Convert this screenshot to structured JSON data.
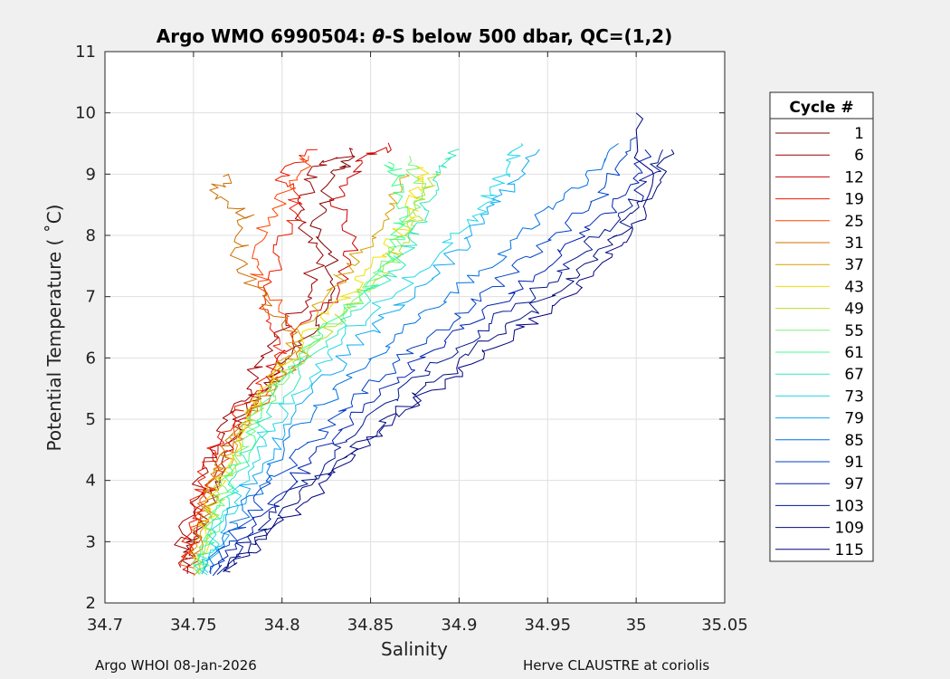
{
  "chart_data": {
    "type": "line",
    "title_prefix": "Argo WMO 6990504: ",
    "title_theta": "θ",
    "title_suffix": "-S below 500 dbar,  QC=(1,2)",
    "xlabel": "Salinity",
    "ylabel": "Potential Temperature ( ˚C)",
    "xlim": [
      34.7,
      35.05
    ],
    "ylim": [
      2,
      11
    ],
    "xticks": [
      34.7,
      34.75,
      34.8,
      34.85,
      34.9,
      34.95,
      35,
      35.05
    ],
    "xtick_labels": [
      "34.7",
      "34.75",
      "34.8",
      "34.85",
      "34.9",
      "34.95",
      "35",
      "35.05"
    ],
    "yticks": [
      2,
      3,
      4,
      5,
      6,
      7,
      8,
      9,
      10,
      11
    ],
    "ytick_labels": [
      "2",
      "3",
      "4",
      "5",
      "6",
      "7",
      "8",
      "9",
      "10",
      "11"
    ],
    "grid": true,
    "colormap": "jet",
    "legend": {
      "title": "Cycle #",
      "position": "right-outside",
      "entries": [
        "1",
        "6",
        "12",
        "19",
        "25",
        "31",
        "37",
        "43",
        "49",
        "55",
        "61",
        "67",
        "73",
        "79",
        "85",
        "91",
        "97",
        "103",
        "109",
        "115"
      ],
      "colors": [
        "#800000",
        "#9b0000",
        "#cc0000",
        "#ee1800",
        "#ff4400",
        "#cc7000",
        "#d4a000",
        "#f0e000",
        "#b8e02a",
        "#80f07a",
        "#40ff90",
        "#30e8c0",
        "#20d8e8",
        "#10a8f0",
        "#0070e0",
        "#0040c8",
        "#0020b0",
        "#001890",
        "#000c78",
        "#000080"
      ]
    },
    "series": [
      {
        "color": "#800000",
        "points": [
          [
            34.745,
            2.5
          ],
          [
            34.75,
            3.0
          ],
          [
            34.76,
            3.8
          ],
          [
            34.77,
            4.5
          ],
          [
            34.78,
            5.2
          ],
          [
            34.8,
            5.8
          ],
          [
            34.82,
            6.5
          ],
          [
            34.83,
            7.3
          ],
          [
            34.82,
            8.2
          ],
          [
            34.83,
            9.0
          ],
          [
            34.84,
            9.3
          ]
        ]
      },
      {
        "color": "#9b0000",
        "points": [
          [
            34.742,
            2.6
          ],
          [
            34.745,
            3.2
          ],
          [
            34.755,
            4.0
          ],
          [
            34.765,
            4.8
          ],
          [
            34.78,
            5.4
          ],
          [
            34.79,
            6.1
          ],
          [
            34.81,
            6.8
          ],
          [
            34.82,
            7.6
          ],
          [
            34.81,
            8.4
          ],
          [
            34.82,
            9.1
          ],
          [
            34.84,
            9.4
          ]
        ]
      },
      {
        "color": "#cc0000",
        "points": [
          [
            34.748,
            2.5
          ],
          [
            34.752,
            3.3
          ],
          [
            34.76,
            4.2
          ],
          [
            34.775,
            4.9
          ],
          [
            34.79,
            5.6
          ],
          [
            34.805,
            6.3
          ],
          [
            34.83,
            7.0
          ],
          [
            34.84,
            7.8
          ],
          [
            34.83,
            8.6
          ],
          [
            34.845,
            9.2
          ],
          [
            34.86,
            9.5
          ]
        ]
      },
      {
        "color": "#ee1800",
        "points": [
          [
            34.744,
            2.7
          ],
          [
            34.75,
            3.5
          ],
          [
            34.758,
            4.3
          ],
          [
            34.77,
            5.0
          ],
          [
            34.785,
            5.5
          ],
          [
            34.8,
            6.2
          ],
          [
            34.79,
            7.0
          ],
          [
            34.8,
            7.8
          ],
          [
            34.81,
            8.5
          ],
          [
            34.8,
            9.0
          ],
          [
            34.82,
            9.4
          ]
        ]
      },
      {
        "color": "#ff4400",
        "points": [
          [
            34.746,
            2.6
          ],
          [
            34.753,
            3.4
          ],
          [
            34.762,
            4.1
          ],
          [
            34.774,
            4.7
          ],
          [
            34.79,
            5.3
          ],
          [
            34.81,
            6.0
          ],
          [
            34.8,
            6.7
          ],
          [
            34.785,
            7.4
          ],
          [
            34.79,
            8.1
          ],
          [
            34.805,
            8.8
          ],
          [
            34.815,
            9.3
          ]
        ]
      },
      {
        "color": "#cc7000",
        "points": [
          [
            34.75,
            2.6
          ],
          [
            34.756,
            3.5
          ],
          [
            34.766,
            4.3
          ],
          [
            34.78,
            5.0
          ],
          [
            34.795,
            5.6
          ],
          [
            34.81,
            6.2
          ],
          [
            34.79,
            6.9
          ],
          [
            34.775,
            7.6
          ],
          [
            34.78,
            8.3
          ],
          [
            34.762,
            8.7
          ],
          [
            34.77,
            9.0
          ]
        ]
      },
      {
        "color": "#d4a000",
        "points": [
          [
            34.749,
            2.5
          ],
          [
            34.755,
            3.3
          ],
          [
            34.765,
            4.1
          ],
          [
            34.777,
            4.8
          ],
          [
            34.792,
            5.5
          ],
          [
            34.8,
            6.0
          ],
          [
            34.815,
            6.6
          ],
          [
            34.83,
            7.2
          ],
          [
            34.845,
            7.8
          ],
          [
            34.86,
            8.4
          ],
          [
            34.87,
            9.0
          ]
        ]
      },
      {
        "color": "#f0e000",
        "points": [
          [
            34.75,
            2.5
          ],
          [
            34.758,
            3.4
          ],
          [
            34.768,
            4.2
          ],
          [
            34.78,
            5.0
          ],
          [
            34.795,
            5.7
          ],
          [
            34.815,
            6.4
          ],
          [
            34.835,
            7.0
          ],
          [
            34.855,
            7.6
          ],
          [
            34.87,
            8.2
          ],
          [
            34.875,
            8.7
          ],
          [
            34.88,
            9.1
          ]
        ]
      },
      {
        "color": "#b8e02a",
        "points": [
          [
            34.751,
            2.5
          ],
          [
            34.76,
            3.4
          ],
          [
            34.77,
            4.2
          ],
          [
            34.782,
            5.0
          ],
          [
            34.8,
            5.7
          ],
          [
            34.82,
            6.3
          ],
          [
            34.84,
            6.9
          ],
          [
            34.86,
            7.5
          ],
          [
            34.875,
            8.1
          ],
          [
            34.88,
            8.6
          ],
          [
            34.885,
            9.0
          ]
        ]
      },
      {
        "color": "#80f07a",
        "points": [
          [
            34.752,
            2.5
          ],
          [
            34.761,
            3.4
          ],
          [
            34.772,
            4.2
          ],
          [
            34.785,
            5.0
          ],
          [
            34.802,
            5.7
          ],
          [
            34.822,
            6.4
          ],
          [
            34.845,
            7.0
          ],
          [
            34.862,
            7.6
          ],
          [
            34.872,
            8.2
          ],
          [
            34.878,
            8.8
          ],
          [
            34.872,
            9.3
          ]
        ]
      },
      {
        "color": "#40ff90",
        "points": [
          [
            34.753,
            2.5
          ],
          [
            34.762,
            3.3
          ],
          [
            34.774,
            4.2
          ],
          [
            34.787,
            5.0
          ],
          [
            34.806,
            5.8
          ],
          [
            34.826,
            6.5
          ],
          [
            34.848,
            7.1
          ],
          [
            34.864,
            7.7
          ],
          [
            34.868,
            8.3
          ],
          [
            34.866,
            8.9
          ],
          [
            34.86,
            9.2
          ]
        ]
      },
      {
        "color": "#30e8c0",
        "points": [
          [
            34.754,
            2.5
          ],
          [
            34.764,
            3.3
          ],
          [
            34.776,
            4.2
          ],
          [
            34.79,
            5.0
          ],
          [
            34.81,
            5.8
          ],
          [
            34.832,
            6.5
          ],
          [
            34.855,
            7.2
          ],
          [
            34.872,
            7.8
          ],
          [
            34.88,
            8.4
          ],
          [
            34.89,
            9.0
          ],
          [
            34.9,
            9.4
          ]
        ]
      },
      {
        "color": "#20d8e8",
        "points": [
          [
            34.755,
            2.5
          ],
          [
            34.766,
            3.3
          ],
          [
            34.778,
            4.1
          ],
          [
            34.794,
            4.9
          ],
          [
            34.815,
            5.7
          ],
          [
            34.84,
            6.5
          ],
          [
            34.87,
            7.2
          ],
          [
            34.895,
            7.9
          ],
          [
            34.915,
            8.5
          ],
          [
            34.925,
            9.0
          ],
          [
            34.935,
            9.5
          ]
        ]
      },
      {
        "color": "#10a8f0",
        "points": [
          [
            34.756,
            2.5
          ],
          [
            34.768,
            3.2
          ],
          [
            34.782,
            4.0
          ],
          [
            34.8,
            4.8
          ],
          [
            34.822,
            5.6
          ],
          [
            34.848,
            6.4
          ],
          [
            34.876,
            7.1
          ],
          [
            34.9,
            7.8
          ],
          [
            34.918,
            8.4
          ],
          [
            34.93,
            8.9
          ],
          [
            34.945,
            9.4
          ]
        ]
      },
      {
        "color": "#0070e0",
        "points": [
          [
            34.758,
            2.5
          ],
          [
            34.772,
            3.2
          ],
          [
            34.788,
            4.0
          ],
          [
            34.808,
            4.8
          ],
          [
            34.832,
            5.5
          ],
          [
            34.86,
            6.2
          ],
          [
            34.89,
            6.9
          ],
          [
            34.92,
            7.6
          ],
          [
            34.945,
            8.3
          ],
          [
            34.97,
            8.9
          ],
          [
            34.99,
            9.5
          ]
        ]
      },
      {
        "color": "#0040c8",
        "points": [
          [
            34.76,
            2.5
          ],
          [
            34.776,
            3.2
          ],
          [
            34.794,
            3.9
          ],
          [
            34.815,
            4.6
          ],
          [
            34.84,
            5.3
          ],
          [
            34.868,
            6.0
          ],
          [
            34.9,
            6.7
          ],
          [
            34.93,
            7.4
          ],
          [
            34.96,
            8.1
          ],
          [
            34.985,
            8.8
          ],
          [
            35.0,
            9.6
          ]
        ]
      },
      {
        "color": "#0020b0",
        "points": [
          [
            34.762,
            2.5
          ],
          [
            34.78,
            3.1
          ],
          [
            34.8,
            3.8
          ],
          [
            34.822,
            4.5
          ],
          [
            34.848,
            5.2
          ],
          [
            34.876,
            5.9
          ],
          [
            34.908,
            6.6
          ],
          [
            34.94,
            7.3
          ],
          [
            34.97,
            8.0
          ],
          [
            34.995,
            8.7
          ],
          [
            35.005,
            9.4
          ]
        ]
      },
      {
        "color": "#001890",
        "points": [
          [
            34.764,
            2.5
          ],
          [
            34.784,
            3.1
          ],
          [
            34.806,
            3.8
          ],
          [
            34.83,
            4.5
          ],
          [
            34.858,
            5.2
          ],
          [
            34.888,
            5.9
          ],
          [
            34.92,
            6.6
          ],
          [
            34.952,
            7.3
          ],
          [
            34.98,
            8.0
          ],
          [
            35.0,
            8.6
          ],
          [
            35.015,
            9.4
          ]
        ]
      },
      {
        "color": "#000c78",
        "points": [
          [
            34.766,
            2.5
          ],
          [
            34.788,
            3.1
          ],
          [
            34.81,
            3.7
          ],
          [
            34.836,
            4.4
          ],
          [
            34.865,
            5.1
          ],
          [
            34.895,
            5.8
          ],
          [
            34.928,
            6.5
          ],
          [
            34.96,
            7.2
          ],
          [
            34.985,
            7.9
          ],
          [
            35.005,
            8.5
          ],
          [
            35.02,
            9.4
          ]
        ]
      },
      {
        "color": "#000080",
        "points": [
          [
            34.768,
            2.5
          ],
          [
            34.79,
            3.0
          ],
          [
            34.814,
            3.7
          ],
          [
            34.84,
            4.4
          ],
          [
            34.87,
            5.1
          ],
          [
            34.9,
            5.8
          ],
          [
            34.93,
            6.4
          ],
          [
            34.965,
            7.1
          ],
          [
            34.99,
            7.8
          ],
          [
            35.008,
            8.5
          ],
          [
            35.0,
            10.0
          ]
        ]
      }
    ]
  },
  "footer": {
    "left": "Argo WHOI 08-Jan-2026",
    "right": "Herve CLAUSTRE at coriolis"
  }
}
